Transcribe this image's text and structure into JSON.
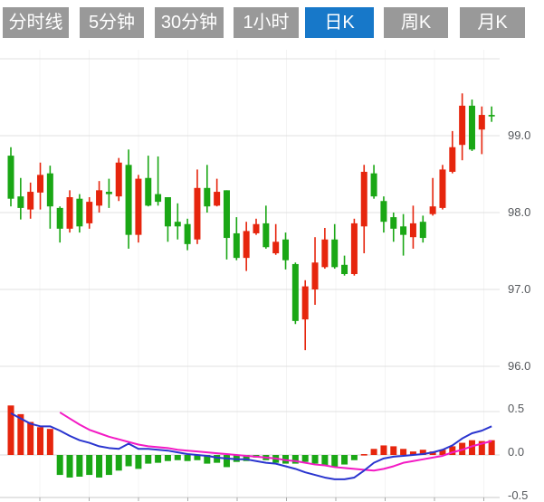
{
  "tabs": [
    {
      "label": "分时线",
      "active": false
    },
    {
      "label": "5分钟",
      "active": false
    },
    {
      "label": "30分钟",
      "active": false
    },
    {
      "label": "1小时",
      "active": false
    },
    {
      "label": "日K",
      "active": true
    },
    {
      "label": "周K",
      "active": false
    },
    {
      "label": "月K",
      "active": false
    }
  ],
  "colors": {
    "up_candle": "#e6250d",
    "down_candle": "#1aa715",
    "dif_line": "#2a35cf",
    "dea_line": "#f31ac4",
    "active_tab": "#1778c9",
    "tab_bg": "#999999",
    "grid": "#e0e0e0",
    "axis_text": "#55585c"
  },
  "chart_data": [
    {
      "type": "candlestick",
      "title": "",
      "period_selected": "日K",
      "ohlc_order": [
        "open",
        "high",
        "low",
        "close"
      ],
      "up_down_convention": "red = up, green = down",
      "y_axis_labels": [
        "99.0",
        "98.0",
        "97.0",
        "96.0"
      ],
      "y_axis_values": [
        99.0,
        98.0,
        97.0,
        96.0
      ],
      "y_top_gridline_value": 100.0,
      "grid": true,
      "candles": [
        [
          98.74,
          98.85,
          98.08,
          98.18
        ],
        [
          98.21,
          98.45,
          97.91,
          98.06
        ],
        [
          98.04,
          98.39,
          97.92,
          98.27
        ],
        [
          98.26,
          98.65,
          98.04,
          98.49
        ],
        [
          98.51,
          98.61,
          97.79,
          98.08
        ],
        [
          98.06,
          98.08,
          97.61,
          97.79
        ],
        [
          97.79,
          98.29,
          97.74,
          98.2
        ],
        [
          98.18,
          98.24,
          97.74,
          97.82
        ],
        [
          97.86,
          98.2,
          97.79,
          98.14
        ],
        [
          98.09,
          98.41,
          98.0,
          98.29
        ],
        [
          98.27,
          98.44,
          98.06,
          98.24
        ],
        [
          98.21,
          98.71,
          98.15,
          98.65
        ],
        [
          98.62,
          98.82,
          97.53,
          97.71
        ],
        [
          97.71,
          98.49,
          97.61,
          98.44
        ],
        [
          98.45,
          98.74,
          98.08,
          98.09
        ],
        [
          98.24,
          98.73,
          98.09,
          98.14
        ],
        [
          98.2,
          98.2,
          97.62,
          97.82
        ],
        [
          97.88,
          98.12,
          97.65,
          97.82
        ],
        [
          97.85,
          97.92,
          97.51,
          97.59
        ],
        [
          97.65,
          98.56,
          97.59,
          98.32
        ],
        [
          98.32,
          98.62,
          98.0,
          98.08
        ],
        [
          98.09,
          98.44,
          98.08,
          98.27
        ],
        [
          98.29,
          98.29,
          97.39,
          97.67
        ],
        [
          97.73,
          97.94,
          97.38,
          97.41
        ],
        [
          97.41,
          97.88,
          97.24,
          97.76
        ],
        [
          97.73,
          97.92,
          97.71,
          97.85
        ],
        [
          97.86,
          98.09,
          97.53,
          97.55
        ],
        [
          97.47,
          97.85,
          97.45,
          97.62
        ],
        [
          97.65,
          97.74,
          97.26,
          97.38
        ],
        [
          97.33,
          97.35,
          96.55,
          96.59
        ],
        [
          96.61,
          97.12,
          96.21,
          97.04
        ],
        [
          97.0,
          97.68,
          96.8,
          97.35
        ],
        [
          97.29,
          97.8,
          97.27,
          97.65
        ],
        [
          97.65,
          97.85,
          97.27,
          97.29
        ],
        [
          97.32,
          97.44,
          97.18,
          97.2
        ],
        [
          97.2,
          97.92,
          97.18,
          97.86
        ],
        [
          97.82,
          98.62,
          97.47,
          98.53
        ],
        [
          98.51,
          98.62,
          98.18,
          98.21
        ],
        [
          98.15,
          98.21,
          97.74,
          97.88
        ],
        [
          97.94,
          98.0,
          97.62,
          97.79
        ],
        [
          97.82,
          97.98,
          97.44,
          97.71
        ],
        [
          97.68,
          98.09,
          97.53,
          97.86
        ],
        [
          97.88,
          97.96,
          97.61,
          97.67
        ],
        [
          97.98,
          98.45,
          97.96,
          98.08
        ],
        [
          98.06,
          98.62,
          98.04,
          98.56
        ],
        [
          98.53,
          99.06,
          98.51,
          98.85
        ],
        [
          98.88,
          99.55,
          98.68,
          99.39
        ],
        [
          99.39,
          99.47,
          98.8,
          98.82
        ],
        [
          99.08,
          99.38,
          98.76,
          99.27
        ],
        [
          99.27,
          99.38,
          99.18,
          99.25
        ]
      ]
    },
    {
      "type": "macd",
      "y_axis_labels": [
        "0.5",
        "0.0",
        "-0.5"
      ],
      "y_axis_values": [
        0.5,
        0.0,
        -0.5
      ],
      "histogram": [
        0.57,
        0.47,
        0.38,
        0.32,
        0.3,
        -0.23,
        -0.26,
        -0.25,
        -0.23,
        -0.26,
        -0.23,
        -0.18,
        -0.13,
        -0.16,
        -0.1,
        -0.09,
        -0.07,
        -0.06,
        -0.07,
        -0.06,
        -0.1,
        -0.09,
        -0.14,
        -0.08,
        -0.07,
        -0.03,
        -0.06,
        -0.09,
        -0.1,
        -0.1,
        -0.08,
        -0.1,
        -0.12,
        -0.14,
        -0.11,
        -0.06,
        0.01,
        0.07,
        0.11,
        0.1,
        0.07,
        0.04,
        0.06,
        0.04,
        0.06,
        0.1,
        0.14,
        0.17,
        0.16,
        0.17
      ],
      "dif": [
        0.48,
        0.42,
        0.36,
        0.33,
        0.33,
        0.28,
        0.22,
        0.17,
        0.14,
        0.1,
        0.08,
        0.07,
        0.13,
        0.07,
        0.07,
        0.06,
        0.05,
        0.03,
        0.01,
        0.0,
        -0.01,
        -0.03,
        -0.04,
        -0.05,
        -0.05,
        -0.07,
        -0.09,
        -0.1,
        -0.13,
        -0.16,
        -0.2,
        -0.23,
        -0.26,
        -0.28,
        -0.28,
        -0.26,
        -0.18,
        -0.09,
        -0.04,
        -0.02,
        -0.01,
        0.0,
        0.01,
        0.03,
        0.06,
        0.11,
        0.19,
        0.25,
        0.28,
        0.33
      ],
      "dea": [
        null,
        null,
        null,
        null,
        null,
        0.49,
        0.42,
        0.35,
        0.29,
        0.25,
        0.21,
        0.18,
        0.15,
        0.12,
        0.1,
        0.09,
        0.08,
        0.06,
        0.05,
        0.04,
        0.03,
        0.02,
        0.01,
        0.0,
        -0.01,
        -0.02,
        -0.03,
        -0.04,
        -0.06,
        -0.07,
        -0.09,
        -0.11,
        -0.12,
        -0.14,
        -0.15,
        -0.16,
        -0.17,
        -0.18,
        -0.16,
        -0.13,
        -0.09,
        -0.07,
        -0.05,
        -0.03,
        -0.01,
        0.03,
        0.06,
        0.1,
        0.13,
        0.16
      ]
    }
  ]
}
